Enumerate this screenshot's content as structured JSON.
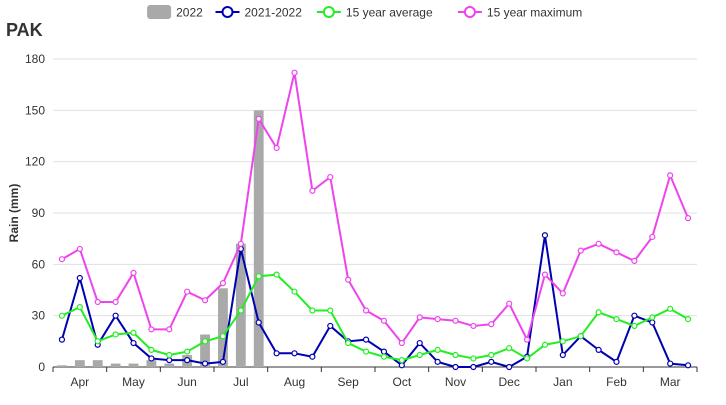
{
  "chart_data": {
    "type": "line",
    "title": "PAK",
    "ylabel": "Rain (mm)",
    "xlabel": "",
    "ylim": [
      0,
      180
    ],
    "yticks": [
      0,
      30,
      60,
      90,
      120,
      150,
      180
    ],
    "x_tick_labels": [
      "Apr",
      "May",
      "Jun",
      "Jul",
      "Aug",
      "Sep",
      "Oct",
      "Nov",
      "Dec",
      "Jan",
      "Feb",
      "Mar"
    ],
    "grid": "horizontal",
    "legend_position": "top-center",
    "n_periods": 36,
    "series": [
      {
        "name": "2022",
        "type": "bar",
        "color": "#a9a9a9",
        "values": [
          1,
          4,
          4,
          2,
          2,
          4,
          2,
          7,
          19,
          46,
          72,
          150
        ]
      },
      {
        "name": "2021-2022",
        "type": "line",
        "color": "#0000b3",
        "values": [
          16,
          52,
          13,
          30,
          14,
          5,
          4,
          4,
          2,
          3,
          69,
          26,
          8,
          8,
          6,
          24,
          15,
          16,
          9,
          1,
          14,
          3,
          0,
          0,
          3,
          0,
          6,
          77,
          7,
          18,
          10,
          3,
          30,
          26,
          2,
          1
        ]
      },
      {
        "name": "15 year average",
        "type": "line",
        "color": "#22ee22",
        "values": [
          30,
          35,
          15,
          19,
          20,
          10,
          7,
          9,
          15,
          18,
          33,
          53,
          54,
          44,
          33,
          33,
          14,
          9,
          6,
          4,
          7,
          10,
          7,
          5,
          7,
          11,
          5,
          13,
          15,
          18,
          32,
          28,
          24,
          29,
          34,
          28
        ]
      },
      {
        "name": "15 year maximum",
        "type": "line",
        "color": "#ee44ee",
        "values": [
          63,
          69,
          38,
          38,
          55,
          22,
          22,
          44,
          39,
          49,
          72,
          145,
          128,
          172,
          103,
          111,
          51,
          33,
          27,
          14,
          29,
          28,
          27,
          24,
          25,
          37,
          16,
          54,
          43,
          68,
          72,
          67,
          62,
          76,
          112,
          87
        ]
      }
    ]
  }
}
